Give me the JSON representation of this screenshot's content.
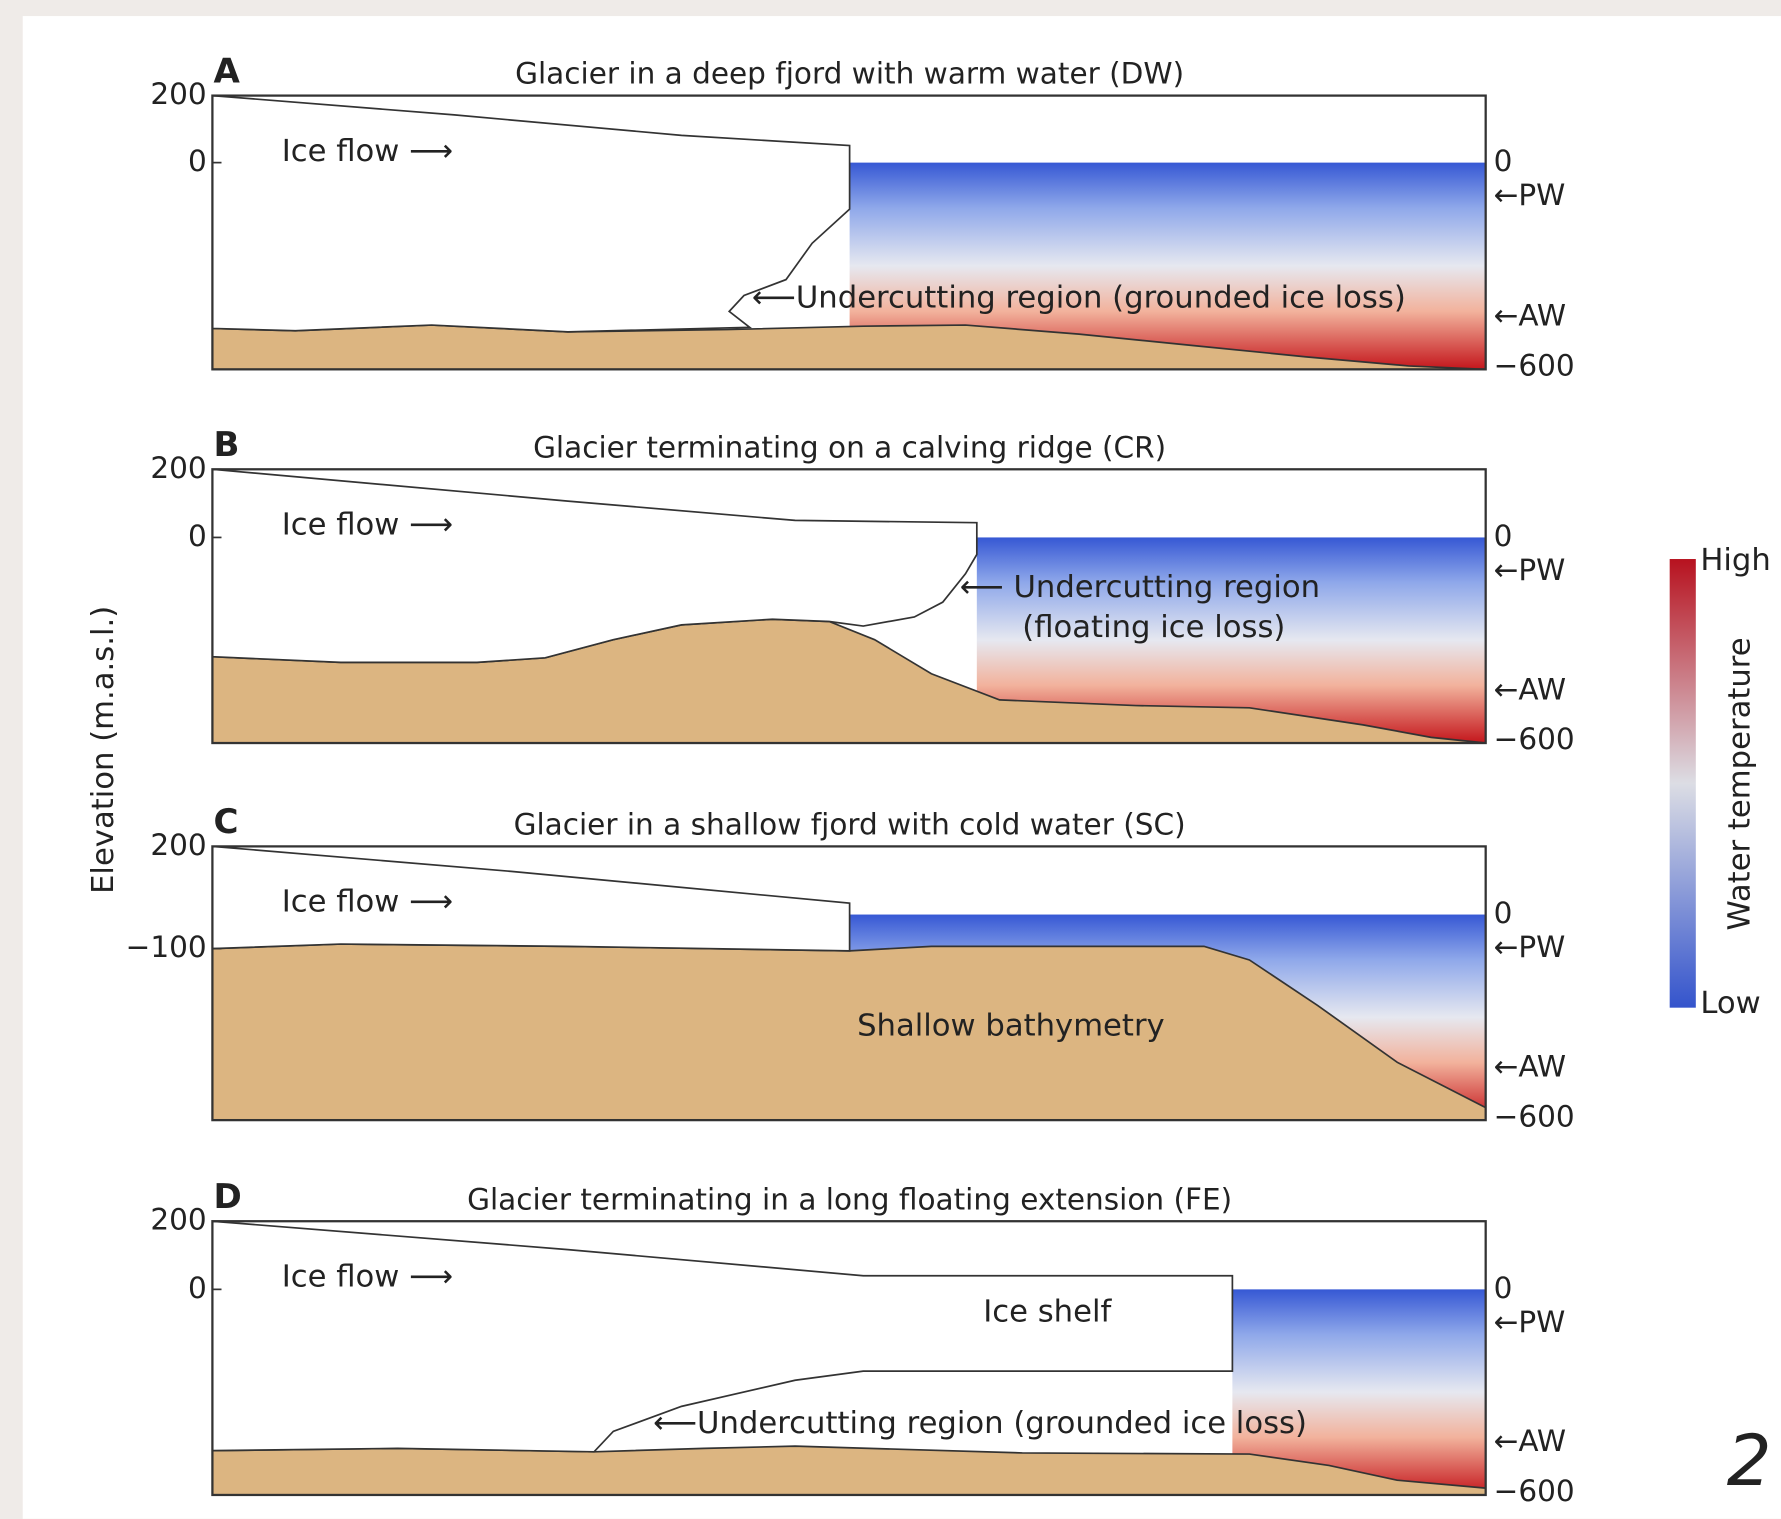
{
  "y_axis_label": "Elevation (m.a.s.l.)",
  "panels": [
    {
      "letter": "A",
      "title": "Glacier in a deep fjord with warm water (DW)",
      "left_ticks": [
        "200",
        "0"
      ],
      "flow_label": "Ice flow ⟶",
      "right_labels": [
        "0",
        "←PW",
        "←AW",
        "−600"
      ],
      "annotations": [
        "⟵Undercutting region (grounded ice loss)"
      ]
    },
    {
      "letter": "B",
      "title": "Glacier terminating on a calving ridge (CR)",
      "left_ticks": [
        "200",
        "0"
      ],
      "flow_label": "Ice flow ⟶",
      "right_labels": [
        "0",
        "←PW",
        "←AW",
        "−600"
      ],
      "annotations": [
        "⟵ Undercutting region",
        "(floating ice loss)"
      ]
    },
    {
      "letter": "C",
      "title": "Glacier in a shallow fjord with cold water (SC)",
      "left_ticks": [
        "200",
        "−100"
      ],
      "flow_label": "Ice flow ⟶",
      "right_labels": [
        "0",
        "←PW",
        "←AW",
        "−600"
      ],
      "annotations": [
        "Shallow bathymetry"
      ]
    },
    {
      "letter": "D",
      "title": "Glacier terminating in a long floating extension (FE)",
      "left_ticks": [
        "200",
        "0"
      ],
      "flow_label": "Ice flow ⟶",
      "right_labels": [
        "0",
        "←PW",
        "←AW",
        "−600"
      ],
      "annotations": [
        "Ice shelf",
        "⟵Undercutting region (grounded ice loss)"
      ]
    }
  ],
  "colorbar": {
    "high": "High",
    "low": "Low",
    "label": "Water temperature"
  },
  "page_number": "2"
}
